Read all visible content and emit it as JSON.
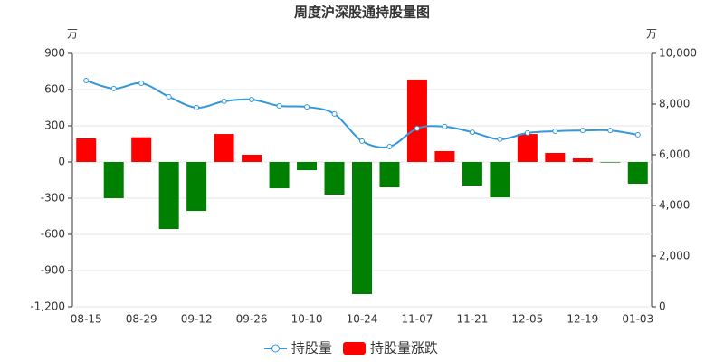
{
  "chart_data": {
    "type": "bar_line",
    "title": "周度沪深股通持股量图",
    "y_label": "万",
    "y2_label": "万",
    "categories": [
      "08-15",
      null,
      "08-29",
      null,
      "09-12",
      null,
      "09-26",
      null,
      "10-10",
      null,
      "10-24",
      null,
      "11-07",
      null,
      "11-21",
      null,
      "12-05",
      null,
      "12-19",
      null,
      "01-03"
    ],
    "ylim": [
      -1200,
      900
    ],
    "yticks": [
      {
        "value": -1200,
        "label": "-1,200"
      },
      -900,
      -600,
      -300,
      0,
      300,
      600,
      900
    ],
    "y2lim": [
      0,
      10000
    ],
    "y2ticks": [
      0,
      {
        "value": 2000,
        "label": "2,000"
      },
      {
        "value": 4000,
        "label": "4,000"
      },
      {
        "value": 6000,
        "label": "6,000"
      },
      {
        "value": 8000,
        "label": "8,000"
      },
      {
        "value": 10000,
        "label": "10,000"
      }
    ],
    "grid": true,
    "legend": "bottom",
    "series": [
      {
        "name": "持股量",
        "type": "line",
        "axis": "y2",
        "color": "#3398db",
        "values": [
          8930,
          8610,
          8820,
          8290,
          7860,
          8110,
          8180,
          7930,
          7890,
          7610,
          6540,
          6320,
          7040,
          7110,
          6890,
          6610,
          6860,
          6930,
          6960,
          6960,
          6790
        ]
      },
      {
        "name": "持股量涨跌",
        "type": "bar",
        "color": "#ff0000",
        "negative_color": "#008000",
        "values": [
          195,
          -300,
          205,
          -555,
          -405,
          232,
          60,
          -218,
          -68,
          -270,
          -1095,
          -210,
          683,
          90,
          -195,
          -293,
          232,
          75,
          30,
          -5,
          -180
        ]
      }
    ]
  }
}
